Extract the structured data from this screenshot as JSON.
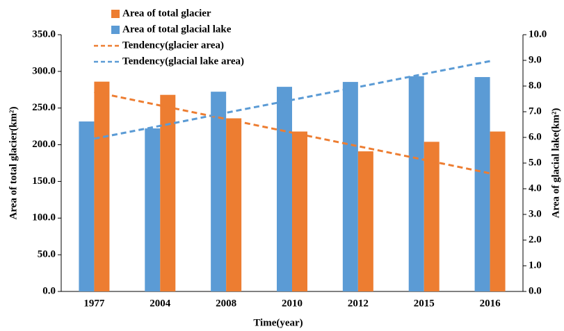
{
  "chart_data": {
    "type": "bar",
    "x_label": "Time(year)",
    "y_label": "Area of total glacier(km²)",
    "y2_label": "Area of glacial lake(km²)",
    "categories": [
      "1977",
      "2004",
      "2008",
      "2010",
      "2012",
      "2015",
      "2016"
    ],
    "series": [
      {
        "name": "Area of total glacier",
        "color": "#ed7d31",
        "type": "bar",
        "values": [
          286,
          268,
          236,
          218,
          191,
          204,
          218
        ]
      },
      {
        "name": "Area of total glacial lake",
        "color": "#5b9bd5",
        "type": "bar",
        "axis": "y2",
        "values": [
          6.62,
          6.35,
          7.78,
          7.97,
          8.16,
          8.38,
          8.35
        ]
      },
      {
        "name": "Tendency(glacier area)",
        "color": "#ed7d31",
        "type": "line",
        "dashed": true,
        "values": [
          272,
          253.5,
          235,
          216.5,
          198,
          179.5,
          161
        ]
      },
      {
        "name": "Tendency(glacial lake area)",
        "color": "#5b9bd5",
        "type": "line",
        "dashed": true,
        "axis": "y2",
        "values": [
          5.95,
          6.45,
          6.96,
          7.46,
          7.96,
          8.47,
          8.97
        ]
      }
    ],
    "ylim": [
      0,
      350
    ],
    "yticks": [
      {
        "value": 0,
        "label": "0.0"
      },
      {
        "value": 50,
        "label": "50.0"
      },
      {
        "value": 100,
        "label": "100.0"
      },
      {
        "value": 150,
        "label": "150.0"
      },
      {
        "value": 200,
        "label": "200.0"
      },
      {
        "value": 250,
        "label": "250.0"
      },
      {
        "value": 300,
        "label": "300.0"
      },
      {
        "value": 350,
        "label": "350.0"
      }
    ],
    "y2lim": [
      0,
      10
    ],
    "y2ticks": [
      {
        "value": 0,
        "label": "0.0"
      },
      {
        "value": 1,
        "label": "1.0"
      },
      {
        "value": 2,
        "label": "2.0"
      },
      {
        "value": 3,
        "label": "3.0"
      },
      {
        "value": 4,
        "label": "4.0"
      },
      {
        "value": 5,
        "label": "5.0"
      },
      {
        "value": 6,
        "label": "6.0"
      },
      {
        "value": 7,
        "label": "7.0"
      },
      {
        "value": 8,
        "label": "8.0"
      },
      {
        "value": 9,
        "label": "9.0"
      },
      {
        "value": 10,
        "label": "10.0"
      }
    ],
    "legend": "top-left"
  }
}
